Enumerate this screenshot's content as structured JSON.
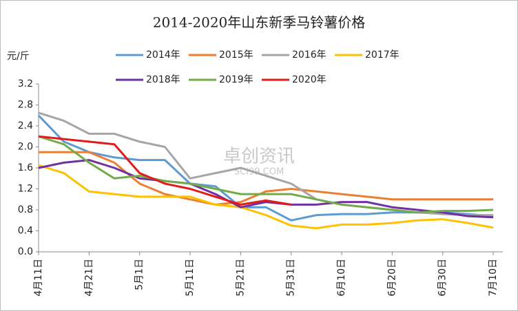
{
  "chart_data": {
    "type": "line",
    "title": "2014-2020年山东新季马铃薯价格",
    "y_label": "元/斤",
    "watermark": "卓创资讯",
    "watermark_sub": "SCI99.COM",
    "categories": [
      "4月11日",
      null,
      "4月21日",
      null,
      "5月1日",
      null,
      "5月11日",
      null,
      "5月21日",
      null,
      "5月31日",
      null,
      "6月10日",
      null,
      "6月20日",
      null,
      "6月30日",
      null,
      "7月10日"
    ],
    "series": [
      {
        "name": "2014年",
        "color": "#5b9bd5",
        "values": [
          2.6,
          2.1,
          1.9,
          1.8,
          1.75,
          1.75,
          1.3,
          1.25,
          0.85,
          0.85,
          0.6,
          0.7,
          0.72,
          0.72,
          0.75,
          0.75,
          0.75,
          0.72,
          0.68
        ]
      },
      {
        "name": "2015年",
        "color": "#ed7d31",
        "values": [
          1.9,
          1.9,
          1.9,
          1.7,
          1.3,
          1.1,
          1.0,
          0.9,
          0.95,
          1.15,
          1.2,
          1.15,
          1.1,
          1.05,
          1.0,
          1.0,
          1.0,
          1.0,
          1.0
        ]
      },
      {
        "name": "2016年",
        "color": "#a5a5a5",
        "values": [
          2.65,
          2.5,
          2.25,
          2.25,
          2.1,
          2.0,
          1.4,
          1.5,
          1.6,
          1.45,
          1.3,
          1.0,
          0.9,
          0.85,
          0.8,
          0.75,
          0.72,
          0.7,
          0.7
        ]
      },
      {
        "name": "2017年",
        "color": "#ffc000",
        "values": [
          1.65,
          1.5,
          1.15,
          1.1,
          1.05,
          1.05,
          1.05,
          0.9,
          0.85,
          0.7,
          0.5,
          0.45,
          0.52,
          0.52,
          0.55,
          0.6,
          0.62,
          0.55,
          0.46
        ]
      },
      {
        "name": "2018年",
        "color": "#7030a0",
        "values": [
          1.6,
          1.7,
          1.75,
          1.6,
          1.4,
          1.35,
          1.3,
          1.1,
          0.85,
          0.95,
          0.9,
          0.9,
          0.95,
          0.95,
          0.85,
          0.8,
          0.75,
          0.68,
          0.66
        ]
      },
      {
        "name": "2019年",
        "color": "#70ad47",
        "values": [
          2.2,
          2.05,
          1.7,
          1.4,
          1.45,
          1.35,
          1.3,
          1.2,
          1.1,
          1.1,
          1.1,
          1.0,
          0.9,
          0.85,
          0.8,
          0.75,
          0.78,
          0.78,
          0.8
        ]
      },
      {
        "name": "2020年",
        "color": "#e3191b",
        "values": [
          2.2,
          2.15,
          2.1,
          2.05,
          1.5,
          1.3,
          1.2,
          1.05,
          0.9,
          0.98,
          0.9,
          null,
          null,
          null,
          null,
          null,
          null,
          null,
          null
        ]
      }
    ],
    "ylim": [
      0,
      3.2
    ],
    "yticks": [
      {
        "value": 0,
        "label": "0.0"
      },
      0.4,
      0.8,
      1.2,
      1.6,
      {
        "value": 2,
        "label": "2.0"
      },
      2.4,
      2.8,
      3.2
    ],
    "grid": false
  }
}
